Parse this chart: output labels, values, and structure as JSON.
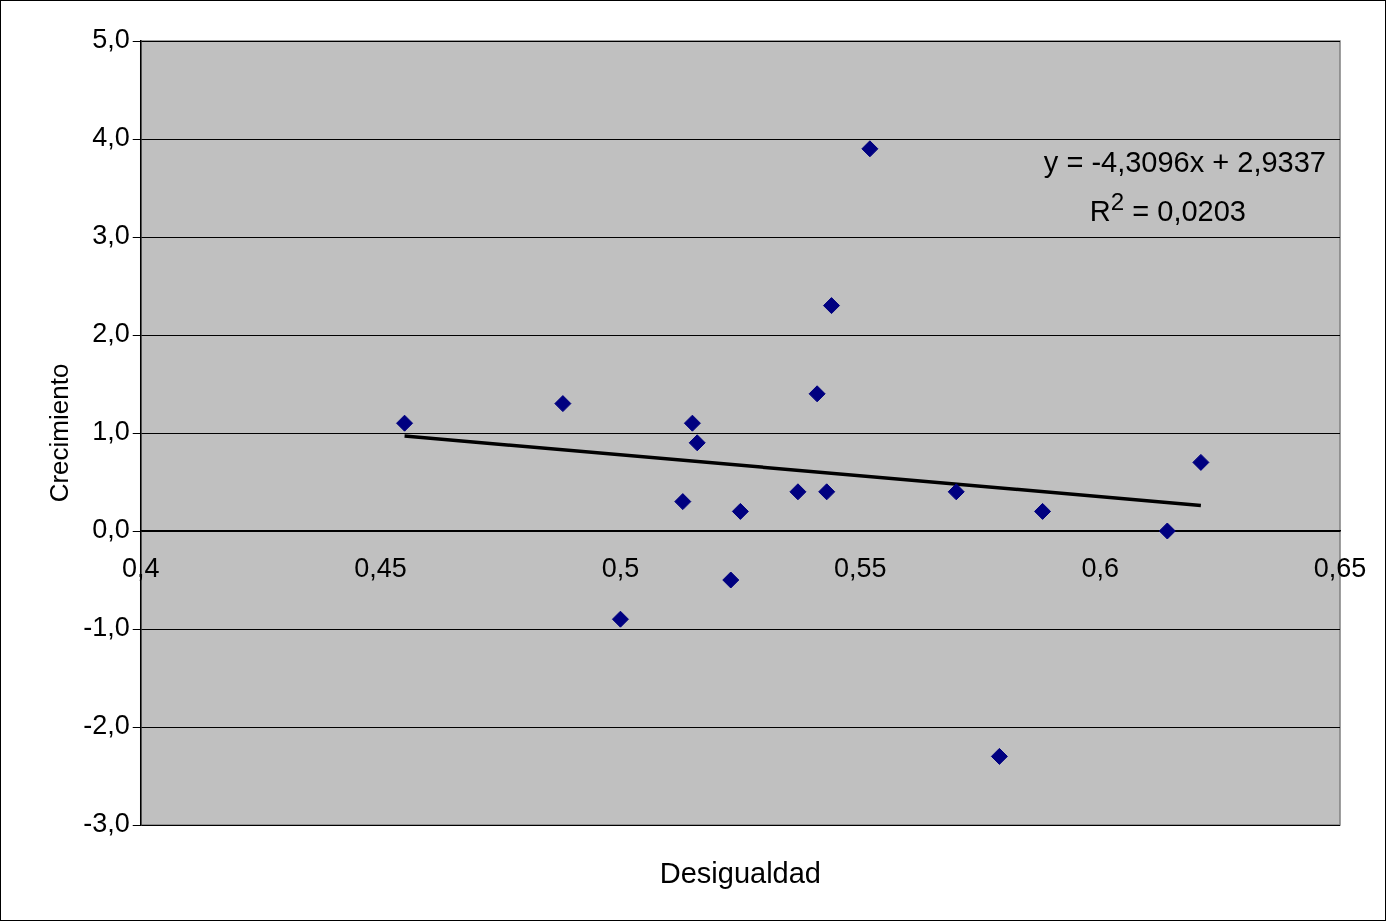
{
  "chart_data": {
    "type": "scatter",
    "xlabel": "Desigualdad",
    "ylabel": "Crecimiento",
    "xlim": [
      0.4,
      0.65
    ],
    "xticks": [
      {
        "value": 0.4,
        "label": "0,4"
      },
      {
        "value": 0.45,
        "label": "0,45"
      },
      {
        "value": 0.5,
        "label": "0,5"
      },
      {
        "value": 0.55,
        "label": "0,55"
      },
      {
        "value": 0.6,
        "label": "0,6"
      },
      {
        "value": 0.65,
        "label": "0,65"
      }
    ],
    "ylim": [
      -3,
      5
    ],
    "yticks": [
      {
        "value": -3,
        "label": "-3,0"
      },
      {
        "value": -2,
        "label": "-2,0"
      },
      {
        "value": -1,
        "label": "-1,0"
      },
      {
        "value": 0,
        "label": "0,0"
      },
      {
        "value": 1,
        "label": "1,0"
      },
      {
        "value": 2,
        "label": "2,0"
      },
      {
        "value": 3,
        "label": "3,0"
      },
      {
        "value": 4,
        "label": "4,0"
      },
      {
        "value": 5,
        "label": "5,0"
      }
    ],
    "grid": "y",
    "legend": false,
    "marker": "diamond",
    "annotations": [
      "y = -4,3096x + 2,9337",
      "R$^{2}$ = 0,0203"
    ],
    "series": [
      {
        "color": "#000080",
        "x": [
          0.455,
          0.488,
          0.513,
          0.515,
          0.516,
          0.5,
          0.523,
          0.525,
          0.537,
          0.541,
          0.543,
          0.544,
          0.552,
          0.57,
          0.579,
          0.588,
          0.614,
          0.621
        ],
        "values": [
          1.1,
          1.3,
          0.3,
          1.1,
          0.9,
          -0.9,
          -0.5,
          0.2,
          0.4,
          1.4,
          0.4,
          2.3,
          3.9,
          0.4,
          -2.3,
          0.2,
          0.0,
          0.7
        ]
      },
      {
        "type": "line",
        "color": "#000000",
        "marker": "none",
        "x": [
          0.455,
          0.621
        ],
        "values": [
          0.97,
          0.26
        ]
      }
    ]
  }
}
